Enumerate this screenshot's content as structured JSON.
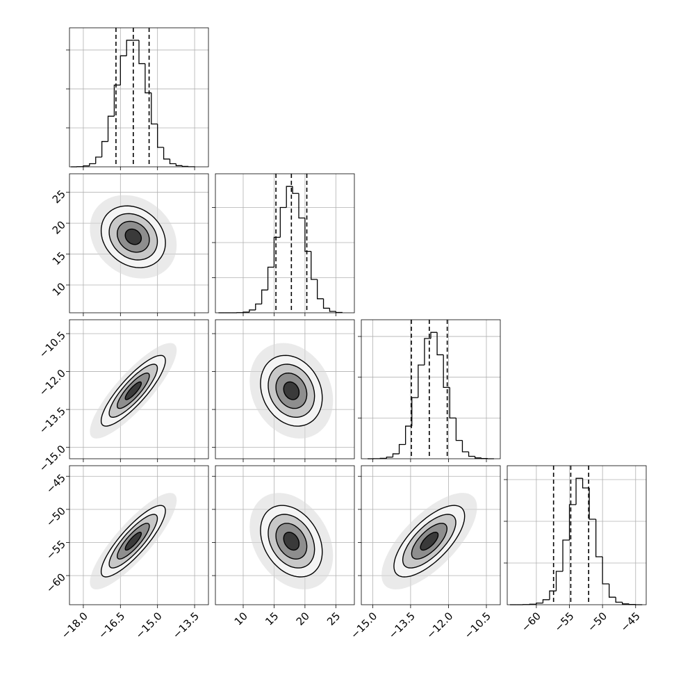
{
  "chart_data": {
    "type": "corner",
    "grid": true,
    "contour_levels": [
      0.5,
      1,
      1.5,
      2
    ],
    "variables": [
      {
        "xlim": [
          -18.56,
          -12.94
        ],
        "ticks": [
          {
            "value": -18.0,
            "label": "−18.0"
          },
          {
            "value": -16.5,
            "label": "−16.5"
          },
          {
            "value": -15.0,
            "label": "−15.0"
          },
          {
            "value": -13.5,
            "label": "−13.5"
          }
        ],
        "quantiles": [
          -16.68,
          -15.98,
          -15.34
        ],
        "hist": {
          "bins": [
            -18.5,
            -18.25,
            -18.0,
            -17.75,
            -17.5,
            -17.25,
            -17.0,
            -16.75,
            -16.5,
            -16.25,
            -16.0,
            -15.75,
            -15.5,
            -15.25,
            -15.0,
            -14.75,
            -14.5,
            -14.25,
            -14.0,
            -13.75,
            -13.5
          ],
          "counts": [
            0,
            5,
            25,
            80,
            250,
            650,
            1300,
            2100,
            2850,
            3250,
            3250,
            2650,
            1900,
            1100,
            500,
            200,
            80,
            30,
            10,
            2
          ],
          "ylim": [
            0,
            3570
          ],
          "yticks": [
            1000,
            2000,
            3000
          ]
        }
      },
      {
        "xlim": [
          5.5,
          28.0
        ],
        "ticks": [
          10,
          15,
          20,
          25
        ],
        "quantiles": [
          15.3,
          17.8,
          20.3
        ],
        "hist": {
          "bins": [
            6,
            7,
            8,
            9,
            10,
            11,
            12,
            13,
            14,
            15,
            16,
            17,
            18,
            19,
            20,
            21,
            22,
            23,
            24,
            25,
            26
          ],
          "counts": [
            0,
            0,
            0,
            5,
            20,
            80,
            250,
            650,
            1300,
            2150,
            3000,
            3600,
            3400,
            2700,
            1750,
            950,
            400,
            130,
            40,
            10
          ],
          "ylim": [
            0,
            3960
          ],
          "yticks": [
            1000,
            2000,
            3000
          ]
        }
      },
      {
        "xlim": [
          -15.45,
          -9.95
        ],
        "ticks": [
          {
            "value": -15.0,
            "label": "−15.0"
          },
          {
            "value": -13.5,
            "label": "−13.5"
          },
          {
            "value": -12.0,
            "label": "−12.0"
          },
          {
            "value": -10.5,
            "label": "−10.5"
          }
        ],
        "quantiles": [
          -13.47,
          -12.76,
          -12.05
        ],
        "hist": {
          "bins": [
            -15.2,
            -14.95,
            -14.7,
            -14.45,
            -14.2,
            -13.95,
            -13.7,
            -13.45,
            -13.2,
            -12.95,
            -12.7,
            -12.45,
            -12.2,
            -11.95,
            -11.7,
            -11.45,
            -11.2,
            -10.95,
            -10.7,
            -10.45,
            -10.2
          ],
          "counts": [
            0,
            2,
            10,
            40,
            120,
            350,
            800,
            1500,
            2300,
            2950,
            3100,
            2550,
            1750,
            1000,
            450,
            170,
            60,
            20,
            5,
            0
          ],
          "ylim": [
            0,
            3410
          ],
          "yticks": [
            1000,
            2000,
            3000
          ]
        }
      },
      {
        "xlim": [
          -64.4,
          -43.4
        ],
        "ticks": [
          {
            "value": -60,
            "label": "−60"
          },
          {
            "value": -55,
            "label": "−55"
          },
          {
            "value": -50,
            "label": "−50"
          },
          {
            "value": -45,
            "label": "−45"
          }
        ],
        "quantiles": [
          -57.4,
          -54.8,
          -52.1
        ],
        "hist": {
          "bins": [
            -64,
            -63,
            -62,
            -61,
            -60,
            -59,
            -58,
            -57,
            -56,
            -55,
            -54,
            -53,
            -52,
            -51,
            -50,
            -49,
            -48,
            -47,
            -46,
            -45,
            -44
          ],
          "counts": [
            0,
            0,
            3,
            12,
            40,
            120,
            330,
            800,
            1550,
            2400,
            3030,
            2800,
            2050,
            1150,
            500,
            180,
            60,
            20,
            5,
            0
          ],
          "ylim": [
            0,
            3333
          ],
          "yticks": [
            1000,
            2000,
            3000
          ]
        }
      }
    ],
    "pairs": [
      {
        "x": 0,
        "y": 1,
        "mean": [
          -15.98,
          17.8
        ],
        "sd": [
          0.65,
          2.5
        ],
        "corr": -0.2
      },
      {
        "x": 0,
        "y": 2,
        "mean": [
          -15.98,
          -12.76
        ],
        "sd": [
          0.65,
          0.7
        ],
        "corr": 0.85
      },
      {
        "x": 1,
        "y": 2,
        "mean": [
          17.8,
          -12.76
        ],
        "sd": [
          2.5,
          0.7
        ],
        "corr": -0.2
      },
      {
        "x": 0,
        "y": 3,
        "mean": [
          -15.98,
          -54.8
        ],
        "sd": [
          0.65,
          2.7
        ],
        "corr": 0.85
      },
      {
        "x": 1,
        "y": 3,
        "mean": [
          17.8,
          -54.8
        ],
        "sd": [
          2.5,
          2.7
        ],
        "corr": -0.3
      },
      {
        "x": 2,
        "y": 3,
        "mean": [
          -12.76,
          -54.8
        ],
        "sd": [
          0.7,
          2.7
        ],
        "corr": 0.7
      }
    ]
  }
}
